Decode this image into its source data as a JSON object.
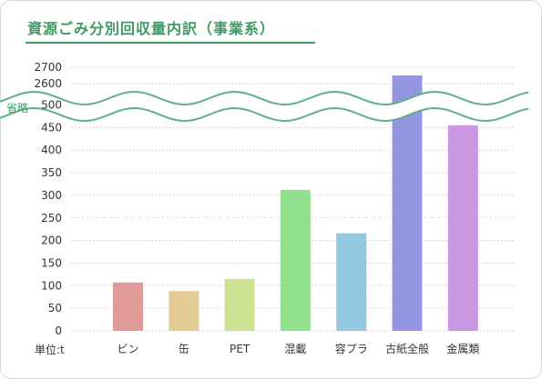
{
  "title": "資源ごみ分別回収量内訳（事業系）",
  "unit_label": "単位:t",
  "break_label": "省略",
  "colors": {
    "accent": "#3f9a63",
    "bars": [
      "#e09a98",
      "#e2cb94",
      "#cde192",
      "#92df8e",
      "#92c9e1",
      "#9596e2",
      "#ca98e3"
    ]
  },
  "chart_data": {
    "type": "bar",
    "title": "資源ごみ分別回収量内訳（事業系）",
    "categories": [
      "ビン",
      "缶",
      "PET",
      "混載",
      "容プラ",
      "古紙全般",
      "金属類"
    ],
    "values": [
      107,
      88,
      115,
      312,
      216,
      2650,
      455
    ],
    "ylabel": "単位:t",
    "y_lower_ticks": [
      "0",
      "50",
      "100",
      "150",
      "200",
      "250",
      "300",
      "350",
      "400",
      "450",
      "500"
    ],
    "y_upper_ticks": [
      "2600",
      "2700"
    ],
    "ylim": [
      0,
      2700
    ],
    "axis_break": [
      520,
      2580
    ],
    "grid": true
  }
}
